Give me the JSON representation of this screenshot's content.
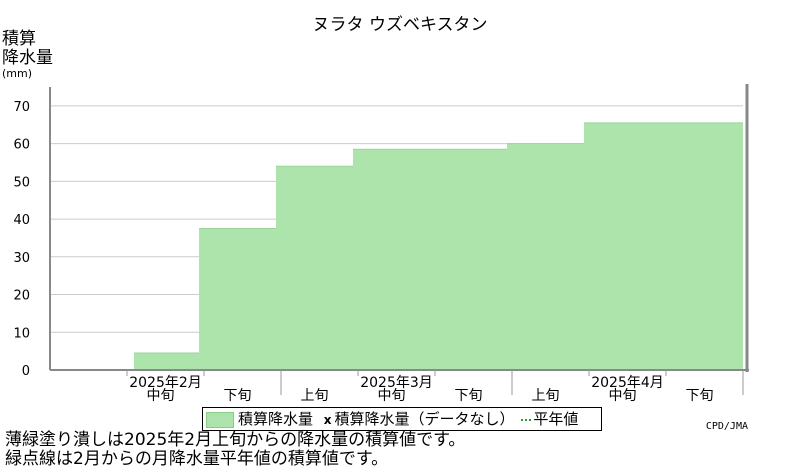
{
  "header": {
    "title": "ヌラタ ウズベキスタン",
    "ylabel_line1": "積算",
    "ylabel_line2": "降水量",
    "ylabel_unit": "(mm)"
  },
  "legend": {
    "series_label": "積算降水量",
    "mark_symbol": "x",
    "missing_label": "積算降水量（データなし）",
    "normal_label": "平年値"
  },
  "footer": {
    "source": "CPD/JMA",
    "note1": "薄緑塗り潰しは2025年2月上旬からの降水量の積算値です。",
    "note2": "緑点線は2月からの月降水量平年値の積算値です。"
  },
  "chart_data": {
    "type": "area",
    "title": "ヌラタ ウズベキスタン",
    "ylabel": "積算降水量(mm)",
    "ylim": [
      0,
      75
    ],
    "yticks": [
      0,
      10,
      20,
      30,
      40,
      50,
      60,
      70
    ],
    "grid": true,
    "categories": [
      "2025年2月 中旬",
      "2025年2月 下旬",
      "2025年3月 上旬",
      "2025年3月 中旬",
      "2025年3月 下旬",
      "2025年4月 上旬",
      "2025年4月 中旬",
      "2025年4月 下旬"
    ],
    "month_labels": [
      "2025年2月",
      "2025年3月",
      "2025年4月"
    ],
    "dekad_labels": [
      "中旬",
      "下旬",
      "上旬",
      "中旬",
      "下旬",
      "上旬",
      "中旬",
      "下旬"
    ],
    "series": [
      {
        "name": "積算降水量",
        "color": "#ace4ac",
        "values": [
          4.5,
          37.5,
          54,
          58.5,
          58.5,
          60,
          65.5,
          65.5
        ]
      }
    ]
  }
}
